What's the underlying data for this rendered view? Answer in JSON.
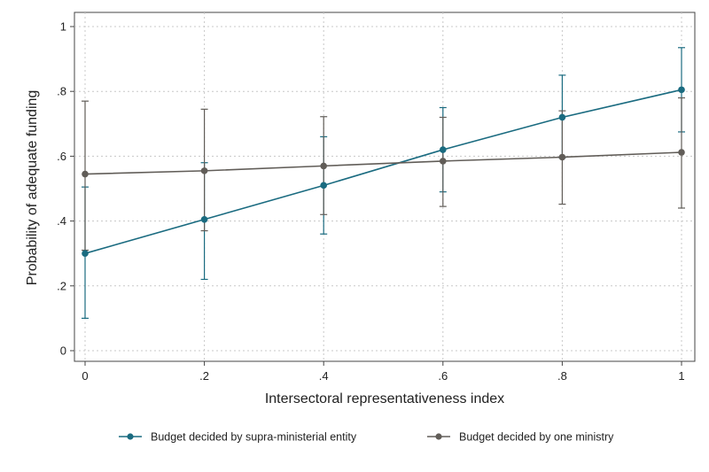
{
  "chart_data": {
    "type": "line",
    "title": "",
    "xlabel": "Intersectoral representativeness index",
    "ylabel": "Probability of adequate funding",
    "xlim": [
      0,
      1
    ],
    "ylim": [
      0,
      1
    ],
    "x_ticks": [
      0,
      0.2,
      0.4,
      0.6,
      0.8,
      1
    ],
    "x_tick_labels": [
      "0",
      ".2",
      ".4",
      ".6",
      ".8",
      "1"
    ],
    "y_ticks": [
      0,
      0.2,
      0.4,
      0.6,
      0.8,
      1
    ],
    "y_tick_labels": [
      "0",
      ".2",
      ".4",
      ".6",
      ".8",
      "1"
    ],
    "grid": true,
    "legend_position": "bottom",
    "x": [
      0,
      0.2,
      0.4,
      0.6,
      0.8,
      1
    ],
    "series": [
      {
        "name": "Budget decided by supra-ministerial entity",
        "color": "#1a6b80",
        "values": [
          0.3,
          0.405,
          0.51,
          0.62,
          0.72,
          0.805
        ],
        "ci_lower": [
          0.1,
          0.22,
          0.36,
          0.49,
          0.595,
          0.675
        ],
        "ci_upper": [
          0.505,
          0.58,
          0.66,
          0.75,
          0.85,
          0.935
        ]
      },
      {
        "name": "Budget decided by one ministry",
        "color": "#615d58",
        "values": [
          0.545,
          0.555,
          0.57,
          0.585,
          0.597,
          0.612
        ],
        "ci_lower": [
          0.31,
          0.37,
          0.42,
          0.445,
          0.452,
          0.44
        ],
        "ci_upper": [
          0.77,
          0.745,
          0.722,
          0.72,
          0.74,
          0.78
        ]
      }
    ]
  }
}
